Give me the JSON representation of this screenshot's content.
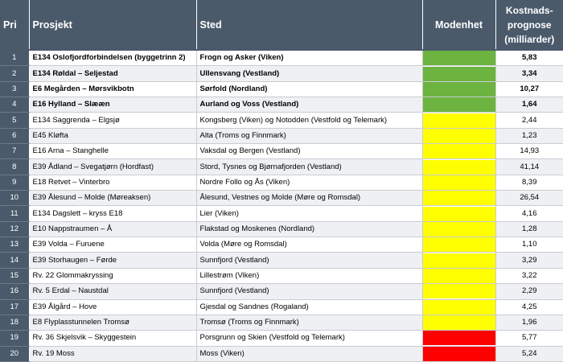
{
  "headers": {
    "pri": "Pri",
    "prosjekt": "Prosjekt",
    "sted": "Sted",
    "modenhet": "Modenhet",
    "kostnad_line1": "Kostnads-",
    "kostnad_line2": "prognose",
    "kostnad_line3": "(milliarder)"
  },
  "colors": {
    "header_bg": "#4a5a6b",
    "green": "#6cb33f",
    "yellow": "#ffff00",
    "red": "#ff0000"
  },
  "rows": [
    {
      "pri": "1",
      "prosjekt": "E134 Oslofjordforbindelsen (byggetrinn 2)",
      "sted": "Frogn og Asker (Viken)",
      "modenhet": "green",
      "kostnad": "5,83",
      "bold": true
    },
    {
      "pri": "2",
      "prosjekt": "E134 Røldal – Seljestad",
      "sted": "Ullensvang (Vestland)",
      "modenhet": "green",
      "kostnad": "3,34",
      "bold": true
    },
    {
      "pri": "3",
      "prosjekt": "E6 Megården – Mørsvikbotn",
      "sted": "Sørfold (Nordland)",
      "modenhet": "green",
      "kostnad": "10,27",
      "bold": true
    },
    {
      "pri": "4",
      "prosjekt": "E16 Hylland – Slææn",
      "sted": "Aurland og Voss (Vestland)",
      "modenhet": "green",
      "kostnad": "1,64",
      "bold": true
    },
    {
      "pri": "5",
      "prosjekt": "E134 Saggrenda – Elgsjø",
      "sted": "Kongsberg (Viken) og Notodden (Vestfold og Telemark)",
      "modenhet": "yellow",
      "kostnad": "2,44",
      "bold": false
    },
    {
      "pri": "6",
      "prosjekt": "E45 Kløfta",
      "sted": "Alta (Troms og Finnmark)",
      "modenhet": "yellow",
      "kostnad": "1,23",
      "bold": false
    },
    {
      "pri": "7",
      "prosjekt": "E16 Arna – Stanghelle",
      "sted": "Vaksdal og Bergen (Vestland)",
      "modenhet": "yellow",
      "kostnad": "14,93",
      "bold": false
    },
    {
      "pri": "8",
      "prosjekt": "E39 Ådland – Svegatjørn (Hordfast)",
      "sted": "Stord, Tysnes og Bjørnafjorden (Vestland)",
      "modenhet": "yellow",
      "kostnad": "41,14",
      "bold": false
    },
    {
      "pri": "9",
      "prosjekt": "E18 Retvet – Vinterbro",
      "sted": "Nordre Follo og Ås (Viken)",
      "modenhet": "yellow",
      "kostnad": "8,39",
      "bold": false
    },
    {
      "pri": "10",
      "prosjekt": "E39 Ålesund – Molde (Møreaksen)",
      "sted": "Ålesund, Vestnes og Molde (Møre og Romsdal)",
      "modenhet": "yellow",
      "kostnad": "26,54",
      "bold": false
    },
    {
      "pri": "11",
      "prosjekt": "E134 Dagslett – kryss E18",
      "sted": "Lier (Viken)",
      "modenhet": "yellow",
      "kostnad": "4,16",
      "bold": false
    },
    {
      "pri": "12",
      "prosjekt": "E10 Nappstraumen – Å",
      "sted": "Flakstad og Moskenes (Nordland)",
      "modenhet": "yellow",
      "kostnad": "1,28",
      "bold": false
    },
    {
      "pri": "13",
      "prosjekt": "E39 Volda – Furuene",
      "sted": "Volda (Møre og Romsdal)",
      "modenhet": "yellow",
      "kostnad": "1,10",
      "bold": false
    },
    {
      "pri": "14",
      "prosjekt": "E39 Storhaugen – Førde",
      "sted": "Sunnfjord (Vestland)",
      "modenhet": "yellow",
      "kostnad": "3,29",
      "bold": false
    },
    {
      "pri": "15",
      "prosjekt": "Rv. 22 Glommakryssing",
      "sted": "Lillestrøm (Viken)",
      "modenhet": "yellow",
      "kostnad": "3,22",
      "bold": false
    },
    {
      "pri": "16",
      "prosjekt": "Rv. 5 Erdal – Naustdal",
      "sted": "Sunnfjord (Vestland)",
      "modenhet": "yellow",
      "kostnad": "2,29",
      "bold": false
    },
    {
      "pri": "17",
      "prosjekt": "E39 Ålgård – Hove",
      "sted": "Gjesdal og Sandnes (Rogaland)",
      "modenhet": "yellow",
      "kostnad": "4,25",
      "bold": false
    },
    {
      "pri": "18",
      "prosjekt": "E8 Flyplasstunnelen Tromsø",
      "sted": "Tromsø (Troms og Finnmark)",
      "modenhet": "yellow",
      "kostnad": "1,96",
      "bold": false
    },
    {
      "pri": "19",
      "prosjekt": "Rv. 36 Skjelsvik – Skyggestein",
      "sted": "Porsgrunn og Skien (Vestfold og Telemark)",
      "modenhet": "red",
      "kostnad": "5,77",
      "bold": false
    },
    {
      "pri": "20",
      "prosjekt": "Rv. 19 Moss",
      "sted": "Moss (Viken)",
      "modenhet": "red",
      "kostnad": "5,24",
      "bold": false
    }
  ]
}
